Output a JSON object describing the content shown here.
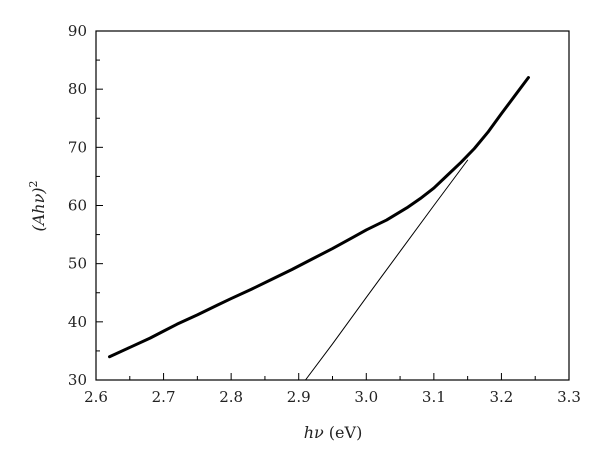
{
  "chart_data": {
    "type": "line",
    "title": "",
    "xlabel_var": "hν",
    "xlabel_unit": " (eV)",
    "ylabel_base": "(Ahν)",
    "ylabel_exp": "2",
    "xlim": [
      2.6,
      3.3
    ],
    "ylim": [
      30,
      90
    ],
    "xticks": [
      2.6,
      2.7,
      2.8,
      2.9,
      3.0,
      3.1,
      3.2,
      3.3
    ],
    "xtick_labels": [
      "2.6",
      "2.7",
      "2.8",
      "2.9",
      "3.0",
      "3.1",
      "3.2",
      "3.3"
    ],
    "yticks": [
      30,
      40,
      50,
      60,
      70,
      80,
      90
    ],
    "ytick_labels": [
      "30",
      "40",
      "50",
      "60",
      "70",
      "80",
      "90"
    ],
    "grid": false,
    "legend": "none",
    "series": [
      {
        "style": "thick",
        "color": "#000000",
        "x": [
          2.62,
          2.65,
          2.68,
          2.7,
          2.72,
          2.75,
          2.78,
          2.8,
          2.83,
          2.86,
          2.89,
          2.92,
          2.95,
          2.98,
          3.0,
          3.03,
          3.06,
          3.08,
          3.1,
          3.12,
          3.14,
          3.16,
          3.18,
          3.2,
          3.22,
          3.24
        ],
        "y": [
          34.0,
          35.6,
          37.2,
          38.4,
          39.6,
          41.2,
          42.9,
          44.0,
          45.6,
          47.3,
          49.0,
          50.8,
          52.6,
          54.5,
          55.8,
          57.5,
          59.6,
          61.2,
          63.0,
          65.2,
          67.4,
          69.8,
          72.6,
          75.8,
          78.9,
          82.0
        ]
      },
      {
        "style": "thin",
        "color": "#000000",
        "x": [
          2.91,
          2.95,
          3.0,
          3.05,
          3.1,
          3.15
        ],
        "y": [
          30.0,
          36.2,
          44.2,
          52.1,
          60.0,
          67.8
        ]
      }
    ]
  }
}
